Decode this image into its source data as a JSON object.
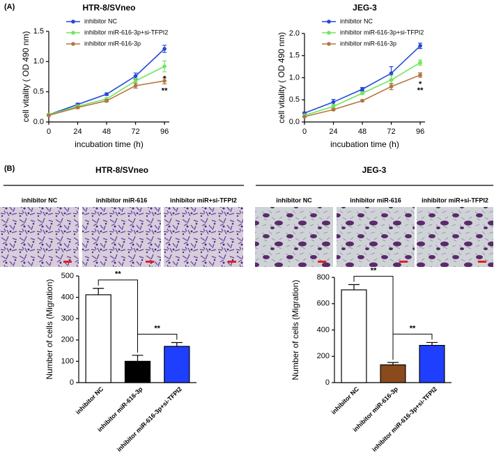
{
  "panel_labels": [
    "(A)",
    "(B)"
  ],
  "micrographs": [
    {
      "title": "HTR-8/SVneo",
      "images": [
        "inhibitor NC",
        "inhibitor miR-616",
        "inhibitor miR+si-TFPI2"
      ]
    },
    {
      "title": "JEG-3",
      "images": [
        "inhibitor NC",
        "inhibitor miR-616",
        "inhibitor miR+si-TFPI2"
      ]
    }
  ],
  "chart_data": [
    {
      "type": "line",
      "title": "HTR-8/SVneo",
      "x_label": "incubation time (h)",
      "y_label": "cell vitality ( OD 490 nm)",
      "x": [
        0,
        24,
        48,
        72,
        96
      ],
      "xlim": [
        0,
        100
      ],
      "xticks": [
        0,
        24,
        48,
        72,
        96
      ],
      "ylim": [
        0,
        1.5
      ],
      "yticks": [
        {
          "value": 0,
          "label": "0.0"
        },
        {
          "value": 0.5,
          "label": "0.5"
        },
        {
          "value": 1,
          "label": "1.0"
        },
        {
          "value": 1.5,
          "label": "1.5"
        }
      ],
      "series": [
        {
          "name": "inhibitor NC",
          "color": "#2547d8",
          "values": [
            0.12,
            0.29,
            0.46,
            0.76,
            1.21
          ],
          "errors": [
            0.01,
            0.02,
            0.02,
            0.05,
            0.06
          ]
        },
        {
          "name": "inhibitor miR-616-3p+si-TFPI2",
          "color": "#6ee65a",
          "values": [
            0.12,
            0.26,
            0.38,
            0.68,
            0.92
          ],
          "errors": [
            0.01,
            0.02,
            0.02,
            0.04,
            0.09
          ]
        },
        {
          "name": "inhibitor miR-616-3p",
          "color": "#b5763f",
          "values": [
            0.11,
            0.24,
            0.35,
            0.6,
            0.68
          ],
          "errors": [
            0.01,
            0.02,
            0.02,
            0.04,
            0.05
          ]
        }
      ],
      "annotations": [
        {
          "text": "*",
          "series": 1
        },
        {
          "text": "**",
          "series": 2
        }
      ]
    },
    {
      "type": "line",
      "title": "JEG-3",
      "x_label": "incubation time (h)",
      "y_label": "cell vitality ( OD 490 nm)",
      "x": [
        0,
        24,
        48,
        72,
        96
      ],
      "xlim": [
        0,
        100
      ],
      "xticks": [
        0,
        24,
        48,
        72,
        96
      ],
      "ylim": [
        0,
        2
      ],
      "yticks": [
        {
          "value": 0,
          "label": "0.0"
        },
        {
          "value": 0.5,
          "label": "0.5"
        },
        {
          "value": 1,
          "label": "1.0"
        },
        {
          "value": 1.5,
          "label": "1.5"
        },
        {
          "value": 2,
          "label": "2.0"
        }
      ],
      "series": [
        {
          "name": "inhibitor NC",
          "color": "#2547d8",
          "values": [
            0.2,
            0.45,
            0.74,
            1.1,
            1.72
          ],
          "errors": [
            0.02,
            0.06,
            0.04,
            0.15,
            0.06
          ]
        },
        {
          "name": "inhibitor miR-616-3p+si-TFPI2",
          "color": "#6ee65a",
          "values": [
            0.15,
            0.35,
            0.65,
            0.95,
            1.34
          ],
          "errors": [
            0.02,
            0.04,
            0.03,
            0.1,
            0.06
          ]
        },
        {
          "name": "inhibitor miR-616-3p",
          "color": "#b5763f",
          "values": [
            0.12,
            0.28,
            0.48,
            0.8,
            1.06
          ],
          "errors": [
            0.01,
            0.02,
            0.02,
            0.07,
            0.05
          ]
        }
      ],
      "annotations": [
        {
          "text": "*",
          "series": 2
        },
        {
          "text": "**",
          "series": 2
        }
      ]
    },
    {
      "type": "bar",
      "y_label": "Number of cells (Migration)",
      "categories": [
        "inhibitor NC",
        "inhibitor miR-616-3p",
        "inhibitor miR-616-3p+si-TFPI2"
      ],
      "values": [
        412,
        100,
        170
      ],
      "errors": [
        30,
        28,
        18
      ],
      "colors": [
        "#ffffff",
        "#000000",
        "#1f3fff"
      ],
      "ylim": [
        0,
        500
      ],
      "yticks": [
        0,
        100,
        200,
        300,
        400,
        500
      ],
      "comparisons": [
        {
          "between": [
            "inhibitor NC",
            "inhibitor miR-616-3p"
          ],
          "label": "**"
        },
        {
          "between": [
            "inhibitor miR-616-3p",
            "inhibitor miR-616-3p+si-TFPI2"
          ],
          "label": "**"
        }
      ]
    },
    {
      "type": "bar",
      "y_label": "Number of cells (Migration)",
      "categories": [
        "inhibitor NC",
        "inhibitor miR-616-3p",
        "inhibitor miR-616-3p+si-TFPI2"
      ],
      "values": [
        705,
        135,
        283
      ],
      "errors": [
        40,
        18,
        22
      ],
      "colors": [
        "#ffffff",
        "#8b4a1c",
        "#1f3fff"
      ],
      "ylim": [
        0,
        800
      ],
      "yticks": [
        0,
        200,
        400,
        600,
        800
      ],
      "comparisons": [
        {
          "between": [
            "inhibitor NC",
            "inhibitor miR-616-3p"
          ],
          "label": "**"
        },
        {
          "between": [
            "inhibitor miR-616-3p",
            "inhibitor miR-616-3p+si-TFPI2"
          ],
          "label": "**"
        }
      ]
    }
  ]
}
